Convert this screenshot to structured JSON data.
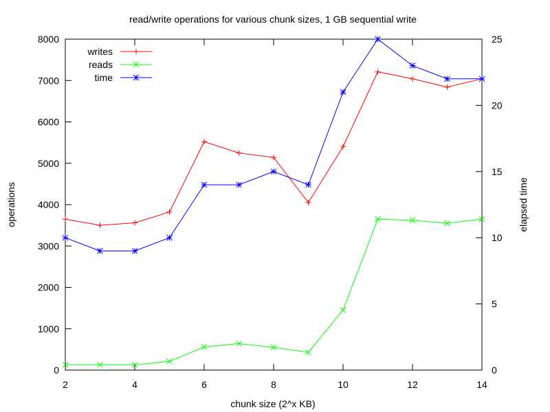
{
  "chart_data": {
    "type": "line",
    "title": "read/write operations for various chunk sizes, 1 GB sequential write",
    "xlabel": "chunk size (2^x KB)",
    "ylabel": "operations",
    "y2label": "elapsed time",
    "xlim": [
      2,
      14
    ],
    "ylim": [
      0,
      8000
    ],
    "y2lim": [
      0,
      25
    ],
    "x_ticks": [
      2,
      4,
      6,
      8,
      10,
      12,
      14
    ],
    "y_ticks": [
      0,
      1000,
      2000,
      3000,
      4000,
      5000,
      6000,
      7000,
      8000
    ],
    "y2_ticks": [
      0,
      5,
      10,
      15,
      20,
      25
    ],
    "grid": false,
    "legend_position": "top-left",
    "x": [
      2,
      3,
      4,
      5,
      6,
      7,
      8,
      9,
      10,
      11,
      12,
      13,
      14
    ],
    "series": [
      {
        "name": "writes",
        "axis": "left",
        "color": "#ff0000",
        "marker": "plus",
        "values": [
          3650,
          3500,
          3560,
          3820,
          5520,
          5250,
          5140,
          4050,
          5400,
          7210,
          7040,
          6840,
          7040
        ]
      },
      {
        "name": "reads",
        "axis": "left",
        "color": "#00ff00",
        "marker": "cross",
        "values": [
          130,
          130,
          130,
          210,
          560,
          640,
          550,
          430,
          1450,
          3650,
          3620,
          3550,
          3650
        ]
      },
      {
        "name": "time",
        "axis": "right",
        "color": "#0000ff",
        "marker": "star",
        "values": [
          10,
          9,
          9,
          10,
          14,
          14,
          15,
          14,
          21,
          25,
          23,
          22,
          22
        ]
      }
    ]
  }
}
